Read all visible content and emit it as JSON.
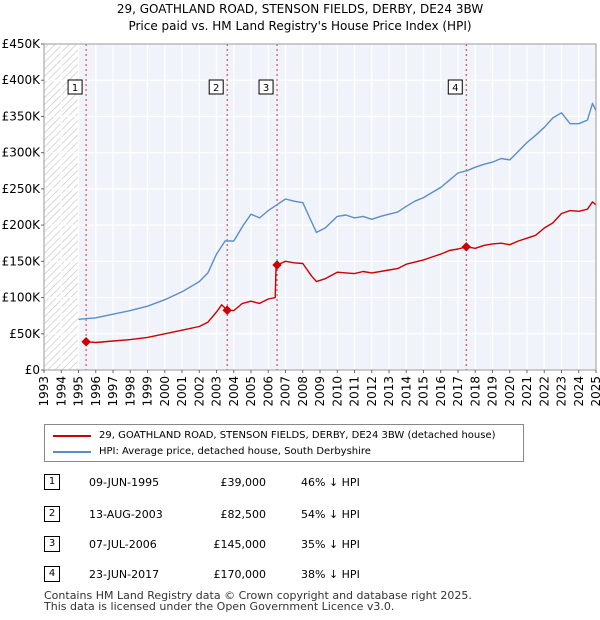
{
  "chart_data": {
    "type": "line",
    "title": "29, GOATHLAND ROAD, STENSON FIELDS, DERBY, DE24 3BW",
    "subtitle": "Price paid vs. HM Land Registry's House Price Index (HPI)",
    "xlim": [
      1993,
      2025
    ],
    "ylim": [
      0,
      450000
    ],
    "x_ticks": [
      1993,
      1994,
      1995,
      1996,
      1997,
      1998,
      1999,
      2000,
      2001,
      2002,
      2003,
      2004,
      2005,
      2006,
      2007,
      2008,
      2009,
      2010,
      2011,
      2012,
      2013,
      2014,
      2015,
      2016,
      2017,
      2018,
      2019,
      2020,
      2021,
      2022,
      2023,
      2024,
      2025
    ],
    "y_ticks": [
      {
        "value": 0,
        "label": "£0"
      },
      {
        "value": 50000,
        "label": "£50K"
      },
      {
        "value": 100000,
        "label": "£100K"
      },
      {
        "value": 150000,
        "label": "£150K"
      },
      {
        "value": 200000,
        "label": "£200K"
      },
      {
        "value": 250000,
        "label": "£250K"
      },
      {
        "value": 300000,
        "label": "£300K"
      },
      {
        "value": 350000,
        "label": "£350K"
      },
      {
        "value": 400000,
        "label": "£400K"
      },
      {
        "value": 450000,
        "label": "£450K"
      }
    ],
    "hatch_before": 1995.0,
    "hatch_after": 2025.0,
    "series": [
      {
        "name": "29, GOATHLAND ROAD, STENSON FIELDS, DERBY, DE24 3BW (detached house)",
        "color": "#cc0000",
        "x": [
          1995.44,
          1996.0,
          1997.0,
          1998.0,
          1999.0,
          2000.0,
          2001.0,
          2002.0,
          2002.5,
          2003.0,
          2003.3,
          2003.62,
          2004.0,
          2004.5,
          2005.0,
          2005.5,
          2006.0,
          2006.4,
          2006.45,
          2006.51,
          2007.0,
          2007.5,
          2008.0,
          2008.5,
          2008.8,
          2009.3,
          2010.0,
          2010.5,
          2011.0,
          2011.5,
          2012.0,
          2012.5,
          2013.0,
          2013.5,
          2014.0,
          2014.5,
          2015.0,
          2015.5,
          2016.0,
          2016.5,
          2017.0,
          2017.48,
          2018.0,
          2018.5,
          2019.0,
          2019.5,
          2020.0,
          2020.5,
          2021.0,
          2021.5,
          2022.0,
          2022.5,
          2023.0,
          2023.5,
          2024.0,
          2024.5,
          2024.8,
          2025.0
        ],
        "values": [
          39000,
          38000,
          40000,
          42000,
          45000,
          50000,
          55000,
          60000,
          66000,
          80000,
          90000,
          82500,
          82000,
          92000,
          95000,
          92000,
          98000,
          100000,
          140000,
          145000,
          150000,
          148000,
          147000,
          130000,
          122000,
          126000,
          135000,
          134000,
          133000,
          136000,
          134000,
          136000,
          138000,
          140000,
          146000,
          149000,
          152000,
          156000,
          160000,
          165000,
          167000,
          170000,
          168000,
          172000,
          174000,
          175000,
          173000,
          178000,
          182000,
          186000,
          196000,
          203000,
          216000,
          220000,
          219000,
          222000,
          232000,
          228000
        ]
      },
      {
        "name": "HPI: Average price, detached house, South Derbyshire",
        "color": "#5b8dc9",
        "x": [
          1995.0,
          1996.0,
          1997.0,
          1998.0,
          1999.0,
          2000.0,
          2001.0,
          2002.0,
          2002.5,
          2003.0,
          2003.5,
          2004.0,
          2004.5,
          2005.0,
          2005.5,
          2006.0,
          2006.5,
          2007.0,
          2007.5,
          2008.0,
          2008.5,
          2008.8,
          2009.3,
          2010.0,
          2010.5,
          2011.0,
          2011.5,
          2012.0,
          2012.5,
          2013.0,
          2013.5,
          2014.0,
          2014.5,
          2015.0,
          2015.5,
          2016.0,
          2016.5,
          2017.0,
          2017.5,
          2018.0,
          2018.5,
          2019.0,
          2019.5,
          2020.0,
          2020.5,
          2021.0,
          2021.5,
          2022.0,
          2022.5,
          2023.0,
          2023.5,
          2024.0,
          2024.5,
          2024.8,
          2025.0
        ],
        "values": [
          70000,
          72000,
          77000,
          82000,
          88000,
          97000,
          108000,
          122000,
          134000,
          160000,
          178000,
          178000,
          198000,
          215000,
          210000,
          220000,
          228000,
          236000,
          233000,
          231000,
          205000,
          190000,
          196000,
          212000,
          214000,
          210000,
          212000,
          208000,
          212000,
          215000,
          218000,
          226000,
          233000,
          238000,
          245000,
          252000,
          262000,
          272000,
          275000,
          280000,
          284000,
          287000,
          292000,
          290000,
          302000,
          314000,
          324000,
          335000,
          348000,
          355000,
          340000,
          340000,
          345000,
          368000,
          358000
        ]
      }
    ],
    "sales": [
      {
        "num": "1",
        "x": 1995.44,
        "price": 39000,
        "date": "09-JUN-1995",
        "price_label": "£39,000",
        "hpi_label": "46% ↓ HPI"
      },
      {
        "num": "2",
        "x": 2003.62,
        "price": 82500,
        "date": "13-AUG-2003",
        "price_label": "£82,500",
        "hpi_label": "54% ↓ HPI"
      },
      {
        "num": "3",
        "x": 2006.51,
        "price": 145000,
        "date": "07-JUL-2006",
        "price_label": "£145,000",
        "hpi_label": "35% ↓ HPI"
      },
      {
        "num": "4",
        "x": 2017.48,
        "price": 170000,
        "date": "23-JUN-2017",
        "price_label": "£170,000",
        "hpi_label": "38% ↓ HPI"
      }
    ]
  },
  "legend": {
    "property_label": "29, GOATHLAND ROAD, STENSON FIELDS, DERBY, DE24 3BW (detached house)",
    "hpi_label": "HPI: Average price, detached house, South Derbyshire"
  },
  "footer": {
    "line1": "Contains HM Land Registry data © Crown copyright and database right 2025.",
    "line2": "This data is licensed under the Open Government Licence v3.0."
  },
  "colors": {
    "property": "#cc0000",
    "hpi": "#5b8dc9",
    "grid": "#dddddd",
    "plot_bg": "#f0f4fa",
    "hatch": "#bbbbbb"
  }
}
